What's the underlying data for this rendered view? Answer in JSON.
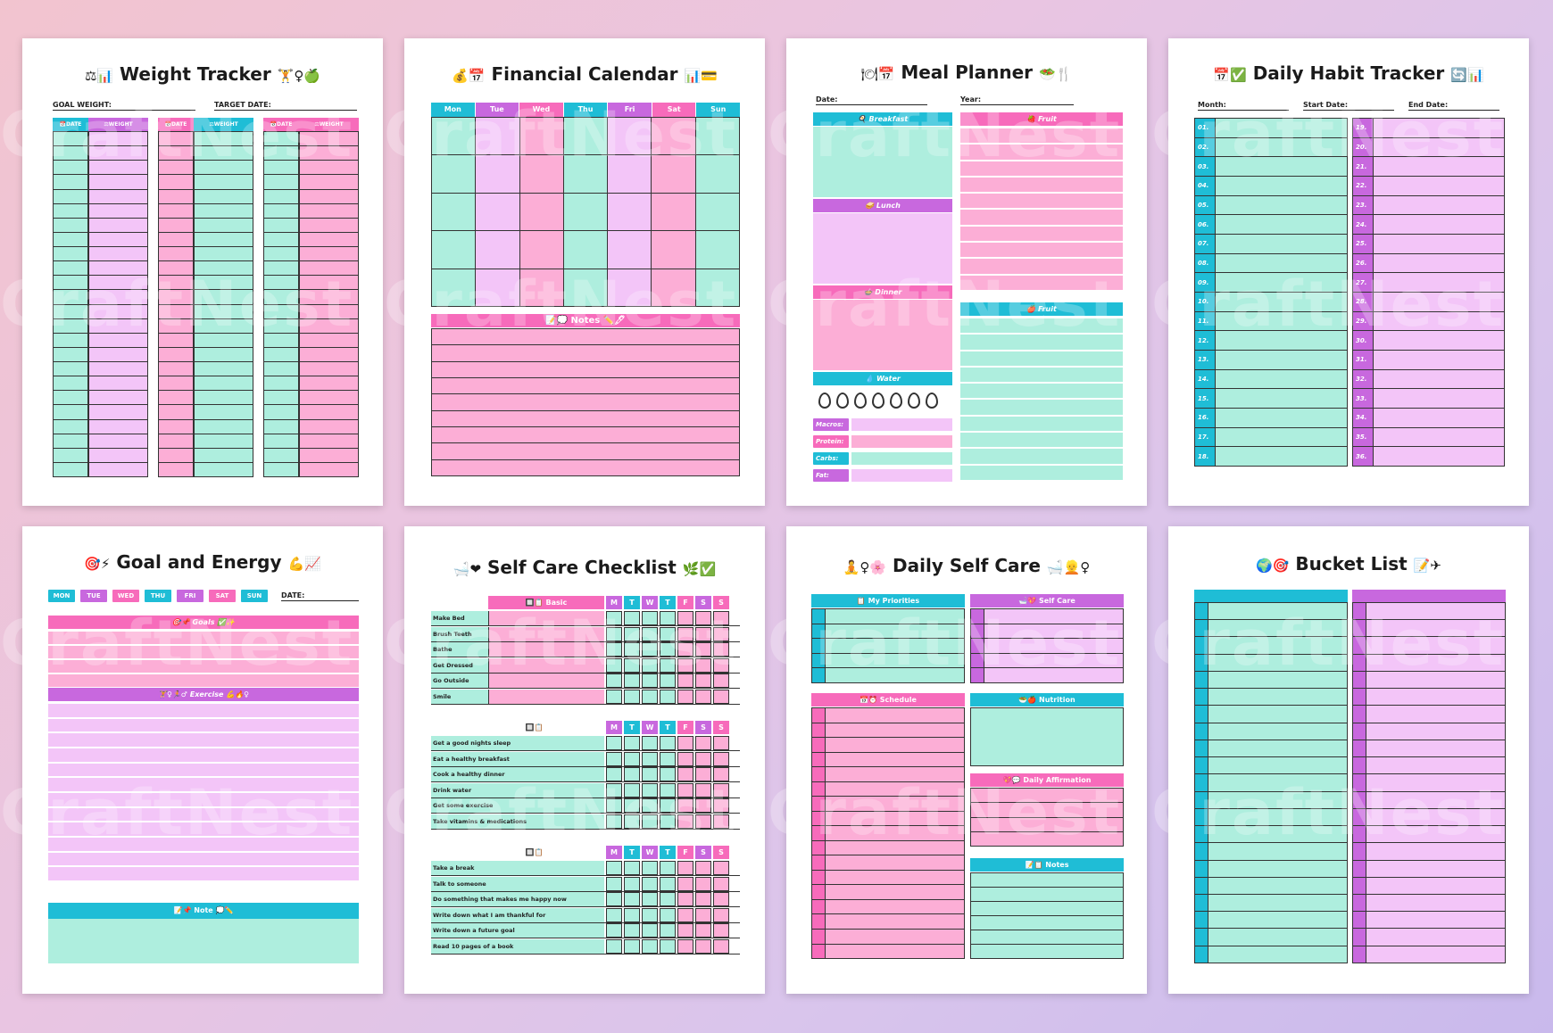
{
  "watermark": "CraftNest",
  "colors": {
    "cyan": "#1fbdd6",
    "mint": "#aeeede",
    "pink": "#f76bbb",
    "light_pink": "#fcaed6",
    "purple": "#c868de",
    "light_purple": "#f3c5f8"
  },
  "weight": {
    "title": "Weight Tracker",
    "emoji_left": "⚖📊",
    "emoji_right": "🏋♀🍏",
    "goal_label": "GOAL WEIGHT:",
    "target_label": "TARGET DATE:",
    "date_hdr": "DATE",
    "weight_hdr": "WEIGHT"
  },
  "financial": {
    "title": "Financial Calendar",
    "emoji_left": "💰📅",
    "emoji_right": "📊💳",
    "days": [
      "Mon",
      "Tue",
      "Wed",
      "Thu",
      "Fri",
      "Sat",
      "Sun"
    ],
    "notes": "Notes"
  },
  "meal": {
    "title": "Meal Planner",
    "emoji_left": "🍽📅",
    "emoji_right": "🥗🍴",
    "date": "Date:",
    "year": "Year:",
    "breakfast": "Breakfast",
    "lunch": "Lunch",
    "dinner": "Dinner",
    "water": "Water",
    "fruit1": "Fruit",
    "fruit2": "Fruit",
    "macros": [
      "Macros:",
      "Protein:",
      "Carbs:",
      "Fat:"
    ]
  },
  "habit": {
    "title": "Daily Habit Tracker",
    "emoji_left": "📅✅",
    "emoji_right": "🔄📊",
    "month": "Month:",
    "start": "Start Date:",
    "end": "End Date:",
    "left_nums": [
      "01.",
      "02.",
      "03.",
      "04.",
      "05.",
      "06.",
      "07.",
      "08.",
      "09.",
      "10.",
      "11.",
      "12.",
      "13.",
      "14.",
      "15.",
      "16.",
      "17.",
      "18."
    ],
    "right_nums": [
      "19.",
      "20.",
      "21.",
      "22.",
      "23.",
      "24.",
      "25.",
      "26.",
      "27.",
      "28.",
      "29.",
      "30.",
      "31.",
      "32.",
      "33.",
      "34.",
      "35.",
      "36."
    ]
  },
  "goal": {
    "title": "Goal and Energy",
    "emoji_left": "🎯⚡",
    "emoji_right": "💪📈",
    "days": [
      "MON",
      "TUE",
      "WED",
      "THU",
      "FRI",
      "SAT",
      "SUN"
    ],
    "date": "DATE:",
    "goals": "Goals",
    "exercise": "Exercise",
    "note": "Note"
  },
  "selfcare": {
    "title": "Self Care Checklist",
    "emoji_left": "🛁❤",
    "emoji_right": "🌿✅",
    "section": "Basic",
    "days": [
      "M",
      "T",
      "W",
      "T",
      "F",
      "S",
      "S"
    ],
    "group1": [
      "Make Bed",
      "Brush Teeth",
      "Bathe",
      "Get Dressed",
      "Go Outside",
      "Smile"
    ],
    "group2": [
      "Get a good nights sleep",
      "Eat a healthy breakfast",
      "Cook a healthy dinner",
      "Drink water",
      "Get some exercise",
      "Take vitamins & medications"
    ],
    "group3": [
      "Take a break",
      "Talk to someone",
      "Do something that makes me happy now",
      "Write  down what I am thankful for",
      "Write down a future goal",
      "Read 10 pages of a book"
    ]
  },
  "dailyself": {
    "title": "Daily Self Care",
    "emoji_left": "🧘♀🌸",
    "emoji_right": "🛁👱♀",
    "priorities": "My Priorities",
    "selfcare": "Self Care",
    "schedule": "Schedule",
    "nutrition": "Nutrition",
    "affirmation": "Daily Affirmation",
    "notes": "Notes"
  },
  "bucket": {
    "title": "Bucket List",
    "emoji_left": "🌍🎯",
    "emoji_right": "📝✈"
  }
}
